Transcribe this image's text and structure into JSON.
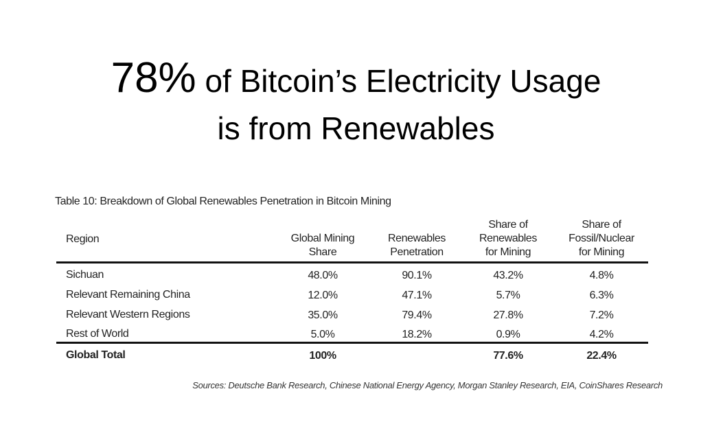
{
  "headline": {
    "highlight": "78%",
    "line1_rest": " of Bitcoin’s Electricity Usage",
    "line2": "is from Renewables"
  },
  "table": {
    "caption": "Table 10: Breakdown of Global Renewables Penetration in Bitcoin Mining",
    "headers": [
      "Region",
      "Global Mining Share",
      "Renewables Penetration",
      "Share of Renewables for Mining",
      "Share of Fossil/Nuclear for Mining"
    ],
    "header_lines": [
      [
        "Region"
      ],
      [
        "Global Mining",
        "Share"
      ],
      [
        "Renewables",
        "Penetration"
      ],
      [
        "Share of",
        "Renewables",
        "for Mining"
      ],
      [
        "Share of",
        "Fossil/Nuclear",
        "for Mining"
      ]
    ],
    "rows": [
      [
        "Sichuan",
        "48.0%",
        "90.1%",
        "43.2%",
        "4.8%"
      ],
      [
        "Relevant Remaining China",
        "12.0%",
        "47.1%",
        "5.7%",
        "6.3%"
      ],
      [
        "Relevant Western Regions",
        "35.0%",
        "79.4%",
        "27.8%",
        "7.2%"
      ],
      [
        "Rest of World",
        "5.0%",
        "18.2%",
        "0.9%",
        "4.2%"
      ]
    ],
    "total": [
      "Global Total",
      "100%",
      "",
      "77.6%",
      "22.4%"
    ],
    "sources": "Sources: Deutsche Bank Research, Chinese National Energy Agency, Morgan Stanley Research, EIA, CoinShares Research"
  }
}
